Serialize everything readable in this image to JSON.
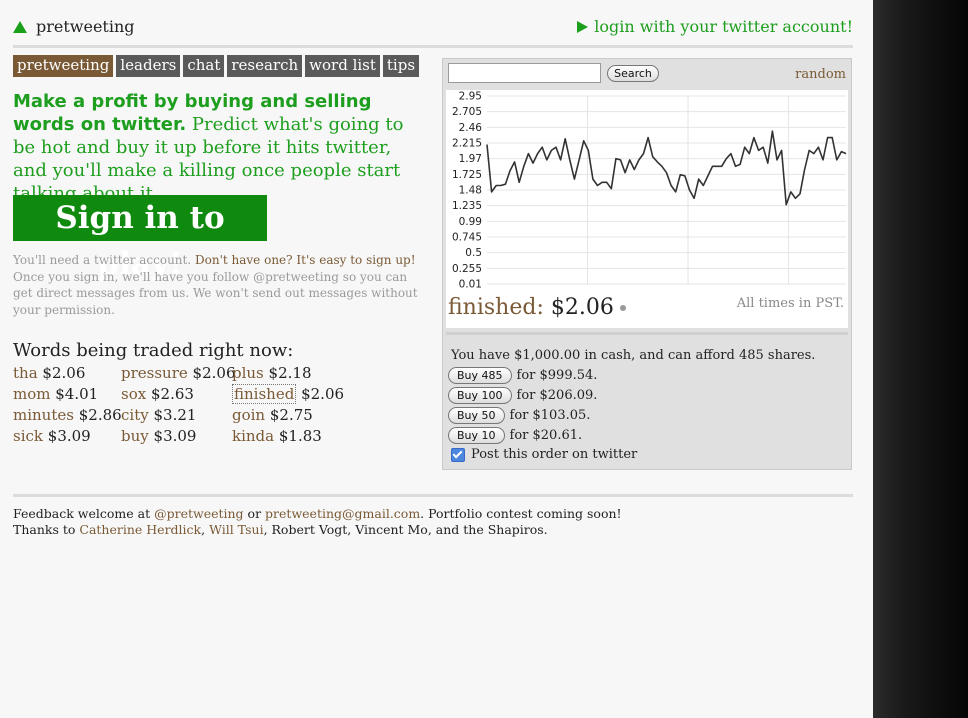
{
  "header": {
    "site_name": "pretweeting",
    "login_label": "login with your twitter account!"
  },
  "nav": [
    "pretweeting",
    "leaders",
    "chat",
    "research",
    "word list",
    "tips"
  ],
  "pitch": {
    "bold": "Make a profit by buying and selling words on twitter.",
    "rest": "Predict what's going to be hot and buy it up before it hits twitter, and you'll make a killing once people start talking about it."
  },
  "signin_label": "Sign in to play!",
  "note": {
    "part1": "You'll need a twitter account.",
    "part2": "Don't have one? It's easy to sign up!",
    "part3": "Once you sign in, we'll have you follow @pretweeting so you can get direct messages from us. We won't send out messages without your permission."
  },
  "traded_title": "Words being traded right now:",
  "traded_words": [
    {
      "word": "tha",
      "price": "$2.06"
    },
    {
      "word": "pressure",
      "price": "$2.06"
    },
    {
      "word": "plus",
      "price": "$2.18"
    },
    {
      "word": "mom",
      "price": "$4.01"
    },
    {
      "word": "sox",
      "price": "$2.63"
    },
    {
      "word": "finished",
      "price": "$2.06"
    },
    {
      "word": "minutes",
      "price": "$2.86"
    },
    {
      "word": "city",
      "price": "$3.21"
    },
    {
      "word": "goin",
      "price": "$2.75"
    },
    {
      "word": "sick",
      "price": "$3.09"
    },
    {
      "word": "buy",
      "price": "$3.09"
    },
    {
      "word": "kinda",
      "price": "$1.83"
    }
  ],
  "panel": {
    "search_value": "",
    "search_button": "Search",
    "random_label": "random",
    "current_word": "finished:",
    "current_price": "$2.06",
    "tz_note": "All times in PST.",
    "cash_text": "You have $1,000.00 in cash, and can afford 485 shares.",
    "buy_options": [
      {
        "label": "Buy 485",
        "cost": "for $999.54."
      },
      {
        "label": "Buy 100",
        "cost": "for $206.09."
      },
      {
        "label": "Buy 50",
        "cost": "for $103.05."
      },
      {
        "label": "Buy 10",
        "cost": "for $20.61."
      }
    ],
    "post_label": "Post this order on twitter",
    "post_checked": true
  },
  "chart_data": {
    "type": "line",
    "y_ticks": [
      "2.95",
      "2.705",
      "2.46",
      "2.215",
      "1.97",
      "1.725",
      "1.48",
      "1.235",
      "0.99",
      "0.745",
      "0.5",
      "0.255",
      "0.01"
    ],
    "ylim": [
      0.01,
      2.95
    ],
    "grid": true,
    "series": [
      {
        "values": [
          2.19,
          1.45,
          1.55,
          1.55,
          1.57,
          1.78,
          1.92,
          1.6,
          1.85,
          2.05,
          1.9,
          2.05,
          2.15,
          1.95,
          2.1,
          2.15,
          1.95,
          2.28,
          1.95,
          1.65,
          1.95,
          2.25,
          2.1,
          1.65,
          1.55,
          1.6,
          1.6,
          1.5,
          1.97,
          1.95,
          1.75,
          1.95,
          1.8,
          1.95,
          2.05,
          2.3,
          2.0,
          1.92,
          1.85,
          1.75,
          1.55,
          1.45,
          1.72,
          1.7,
          1.48,
          1.35,
          1.65,
          1.55,
          1.7,
          1.85,
          1.85,
          1.85,
          1.97,
          2.05,
          1.85,
          1.88,
          2.15,
          2.05,
          2.3,
          2.1,
          2.15,
          1.9,
          2.4,
          1.95,
          2.1,
          1.25,
          1.45,
          1.35,
          1.42,
          1.8,
          2.1,
          2.05,
          2.15,
          1.95,
          2.3,
          2.3,
          1.95,
          2.08,
          2.05
        ]
      }
    ]
  },
  "footer": {
    "line1_a": "Feedback welcome at",
    "line1_link1": "@pretweeting",
    "line1_b": "or",
    "line1_link2": "pretweeting@gmail.com",
    "line1_c": ". Portfolio contest coming soon!",
    "line2_a": "Thanks to",
    "line2_link1": "Catherine Herdlick",
    "line2_link2": "Will Tsui",
    "line2_c": ", Robert Vogt, Vincent Mo, and the Shapiros."
  }
}
